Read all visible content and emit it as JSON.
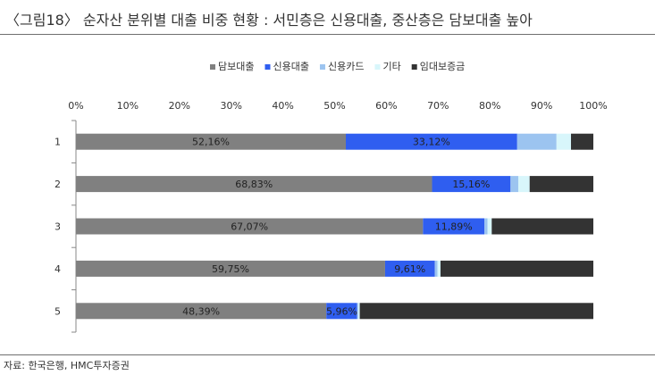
{
  "header": {
    "title": "〈그림18〉 순자산 분위별 대출 비중 현황 : 서민층은 신용대출, 중산층은 담보대출 높아"
  },
  "footer": {
    "source": "자료: 한국은행, HMC투자증권"
  },
  "chart_data": {
    "type": "bar",
    "orientation": "horizontal",
    "stacked": true,
    "title": "〈그림18〉 순자산 분위별 대출 비중 현황 : 서민층은 신용대출, 중산층은 담보대출 높아",
    "categories": [
      "1",
      "2",
      "3",
      "4",
      "5"
    ],
    "x_ticks": [
      "0%",
      "10%",
      "20%",
      "30%",
      "40%",
      "50%",
      "60%",
      "70%",
      "80%",
      "90%",
      "100%"
    ],
    "xlim": [
      0,
      100
    ],
    "xlabel": "",
    "ylabel": "",
    "grid": false,
    "legend_position": "top",
    "series": [
      {
        "name": "담보대출",
        "color": "#808080",
        "values": [
          52.16,
          68.83,
          67.07,
          59.75,
          48.39
        ],
        "labels": [
          "52,16%",
          "68,83%",
          "67,07%",
          "59,75%",
          "48,39%"
        ]
      },
      {
        "name": "신용대출",
        "color": "#2f5ef0",
        "values": [
          33.12,
          15.16,
          11.89,
          9.61,
          5.96
        ],
        "labels": [
          "33,12%",
          "15,16%",
          "11,89%",
          "9,61%",
          "5,96%"
        ]
      },
      {
        "name": "신용카드",
        "color": "#9cc4f0",
        "values": [
          7.6,
          1.5,
          0.6,
          0.5,
          0.2
        ],
        "labels": [
          "",
          "",
          "",
          "",
          ""
        ]
      },
      {
        "name": "기타",
        "color": "#d8f6fb",
        "values": [
          2.8,
          2.2,
          0.8,
          0.6,
          0.3
        ],
        "labels": [
          "",
          "",
          "",
          "",
          ""
        ]
      },
      {
        "name": "임대보증금",
        "color": "#333333",
        "values": [
          4.32,
          12.31,
          19.64,
          29.54,
          45.15
        ],
        "labels": [
          "",
          "",
          "",
          "",
          ""
        ]
      }
    ]
  }
}
